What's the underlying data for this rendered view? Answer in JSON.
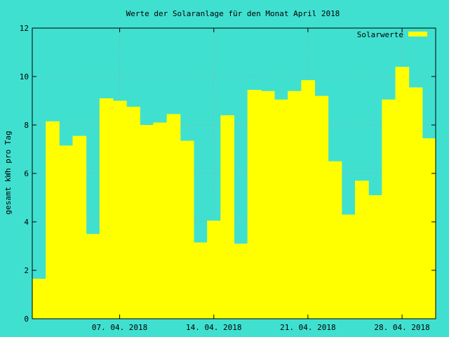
{
  "chart_data": {
    "type": "bar",
    "title": "Werte der Solaranlage für den Monat April 2018",
    "xlabel": "",
    "ylabel": "gesamt kWh pro Tag",
    "ylim": [
      0,
      12
    ],
    "yticks": [
      0,
      2,
      4,
      6,
      8,
      10,
      12
    ],
    "xticks": [
      {
        "day": 7,
        "label": "07. 04. 2018"
      },
      {
        "day": 14,
        "label": "14. 04. 2018"
      },
      {
        "day": 21,
        "label": "21. 04. 2018"
      },
      {
        "day": 28,
        "label": "28. 04. 2018"
      }
    ],
    "grid": true,
    "legend_position": "top-right",
    "series": [
      {
        "name": "Solarwerte",
        "color": "#ffff00",
        "days": [
          1,
          2,
          3,
          4,
          5,
          6,
          7,
          8,
          9,
          10,
          11,
          12,
          13,
          14,
          15,
          16,
          17,
          18,
          19,
          20,
          21,
          22,
          23,
          24,
          25,
          26,
          27,
          28,
          29,
          30
        ],
        "values": [
          1.65,
          8.15,
          7.15,
          7.55,
          3.5,
          9.1,
          9.0,
          8.75,
          8.0,
          8.1,
          8.45,
          7.35,
          3.15,
          4.05,
          8.4,
          3.1,
          9.45,
          9.4,
          9.05,
          9.4,
          9.85,
          9.2,
          6.5,
          4.3,
          5.7,
          5.1,
          9.05,
          10.4,
          9.55,
          7.45
        ]
      }
    ]
  }
}
